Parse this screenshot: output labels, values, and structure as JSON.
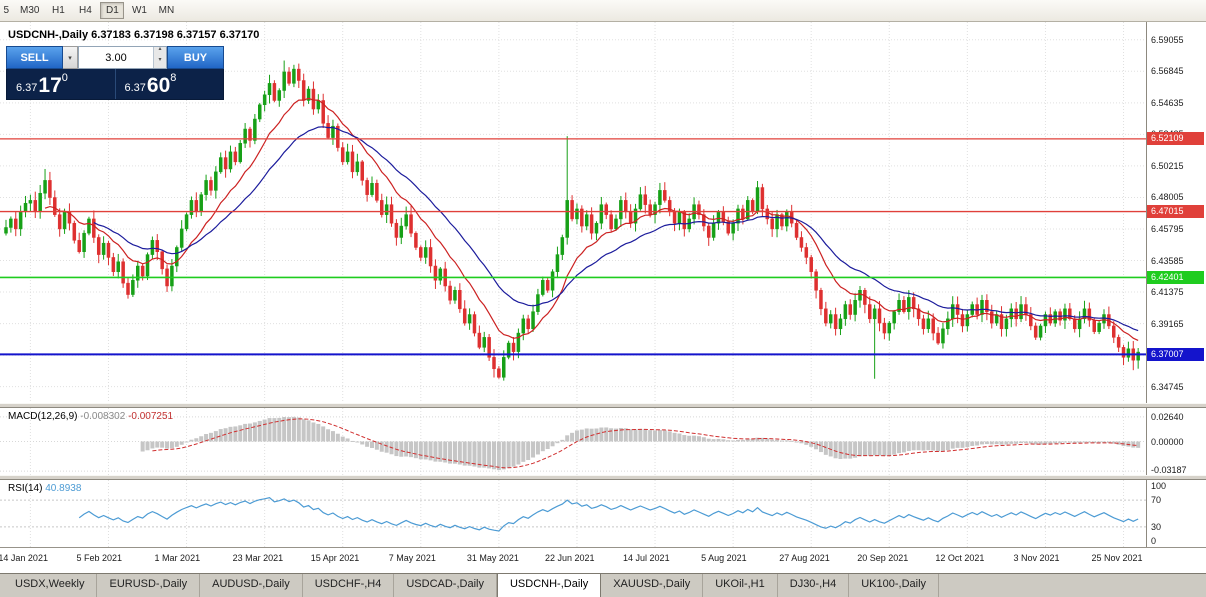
{
  "toolbar": {
    "timeframes": [
      {
        "label": "5",
        "active": false,
        "cut": true
      },
      {
        "label": "M30",
        "active": false
      },
      {
        "label": "H1",
        "active": false
      },
      {
        "label": "H4",
        "active": false
      },
      {
        "label": "D1",
        "active": true
      },
      {
        "label": "W1",
        "active": false
      },
      {
        "label": "MN",
        "active": false
      }
    ]
  },
  "chart": {
    "title": "USDCNH-,Daily",
    "ohlc_text": "6.37183 6.37198 6.37157 6.37170"
  },
  "trade_panel": {
    "sell_label": "SELL",
    "buy_label": "BUY",
    "volume": "3.00",
    "sell_price_main": "6.37",
    "sell_price_big": "17",
    "sell_price_sup": "0",
    "buy_price_main": "6.37",
    "buy_price_big": "60",
    "buy_price_sup": "8"
  },
  "macd": {
    "label": "MACD(12,26,9)",
    "value_main": "-0.008302",
    "value_signal": "-0.007251",
    "axis": [
      "0.02640",
      "0.00000",
      "-0.03187"
    ]
  },
  "rsi": {
    "label": "RSI(14)",
    "value": "40.8938",
    "axis": [
      "100",
      "70",
      "30",
      "0"
    ]
  },
  "tabs": [
    {
      "label": "USDX,Weekly",
      "active": false
    },
    {
      "label": "EURUSD-,Daily",
      "active": false
    },
    {
      "label": "AUDUSD-,Daily",
      "active": false
    },
    {
      "label": "USDCHF-,H4",
      "active": false
    },
    {
      "label": "USDCAD-,Daily",
      "active": false
    },
    {
      "label": "USDCNH-,Daily",
      "active": true
    },
    {
      "label": "XAUUSD-,Daily",
      "active": false
    },
    {
      "label": "UKOil-,H1",
      "active": false
    },
    {
      "label": "DJ30-,H4",
      "active": false
    },
    {
      "label": "UK100-,Daily",
      "active": false
    }
  ],
  "chart_data": {
    "type": "candlestick",
    "symbol": "USDCNH-",
    "timeframe": "Daily",
    "current_bar": {
      "open": 6.37183,
      "high": 6.37198,
      "low": 6.37157,
      "close": 6.3717
    },
    "y_axis": {
      "max": 6.603,
      "min": 6.336,
      "tick_labels": [
        "6.59055",
        "6.56845",
        "6.54635",
        "6.52425",
        "6.50215",
        "6.48005",
        "6.45795",
        "6.43585",
        "6.41375",
        "6.39165",
        "6.36955",
        "6.34745"
      ]
    },
    "x_tick_labels": [
      "14 Jan 2021",
      "5 Feb 2021",
      "1 Mar 2021",
      "23 Mar 2021",
      "15 Apr 2021",
      "7 May 2021",
      "31 May 2021",
      "22 Jun 2021",
      "14 Jul 2021",
      "5 Aug 2021",
      "27 Aug 2021",
      "20 Sep 2021",
      "12 Oct 2021",
      "3 Nov 2021",
      "25 Nov 2021"
    ],
    "x_tick_indices": [
      5,
      21,
      37,
      53,
      69,
      85,
      101,
      117,
      133,
      149,
      165,
      181,
      197,
      213,
      229
    ],
    "closes": [
      6.459,
      6.465,
      6.458,
      6.47,
      6.476,
      6.478,
      6.47,
      6.483,
      6.492,
      6.48,
      6.468,
      6.458,
      6.47,
      6.462,
      6.45,
      6.442,
      6.455,
      6.465,
      6.452,
      6.44,
      6.448,
      6.438,
      6.428,
      6.435,
      6.42,
      6.412,
      6.422,
      6.432,
      6.425,
      6.44,
      6.45,
      6.442,
      6.43,
      6.418,
      6.432,
      6.445,
      6.458,
      6.468,
      6.478,
      6.47,
      6.482,
      6.492,
      6.485,
      6.498,
      6.508,
      6.5,
      6.512,
      6.505,
      6.518,
      6.528,
      6.52,
      6.535,
      6.545,
      6.552,
      6.56,
      6.548,
      6.555,
      6.568,
      6.56,
      6.57,
      6.562,
      6.548,
      6.556,
      6.542,
      6.548,
      6.532,
      6.522,
      6.53,
      6.515,
      6.505,
      6.512,
      6.498,
      6.505,
      6.492,
      6.482,
      6.49,
      6.478,
      6.468,
      6.475,
      6.462,
      6.452,
      6.46,
      6.468,
      6.455,
      6.445,
      6.438,
      6.445,
      6.432,
      6.422,
      6.43,
      6.418,
      6.408,
      6.415,
      6.402,
      6.392,
      6.398,
      6.385,
      6.375,
      6.382,
      6.368,
      6.36,
      6.354,
      6.368,
      6.378,
      6.372,
      6.385,
      6.395,
      6.388,
      6.4,
      6.412,
      6.422,
      6.415,
      6.428,
      6.44,
      6.452,
      6.478,
      6.465,
      6.472,
      6.46,
      6.468,
      6.455,
      6.462,
      6.475,
      6.468,
      6.458,
      6.465,
      6.478,
      6.47,
      6.462,
      6.472,
      6.482,
      6.475,
      6.468,
      6.475,
      6.485,
      6.478,
      6.47,
      6.462,
      6.47,
      6.458,
      6.465,
      6.475,
      6.468,
      6.46,
      6.452,
      6.462,
      6.47,
      6.463,
      6.455,
      6.462,
      6.472,
      6.465,
      6.478,
      6.47,
      6.487,
      6.472,
      6.465,
      6.458,
      6.468,
      6.46,
      6.47,
      6.462,
      6.452,
      6.445,
      6.438,
      6.428,
      6.415,
      6.402,
      6.392,
      6.398,
      6.388,
      6.395,
      6.405,
      6.398,
      6.408,
      6.415,
      6.405,
      6.395,
      6.402,
      6.392,
      6.385,
      6.392,
      6.4,
      6.408,
      6.4,
      6.41,
      6.402,
      6.395,
      6.388,
      6.395,
      6.385,
      6.378,
      6.388,
      6.395,
      6.405,
      6.398,
      6.39,
      6.398,
      6.405,
      6.398,
      6.408,
      6.4,
      6.392,
      6.398,
      6.388,
      6.395,
      6.402,
      6.395,
      6.405,
      6.398,
      6.39,
      6.382,
      6.39,
      6.398,
      6.392,
      6.4,
      6.394,
      6.402,
      6.395,
      6.388,
      6.395,
      6.402,
      6.394,
      6.386,
      6.392,
      6.398,
      6.39,
      6.382,
      6.375,
      6.368,
      6.374,
      6.366,
      6.3717
    ],
    "special_points": {
      "8": {
        "h": 6.5
      },
      "57": {
        "h": 6.576
      },
      "59": {
        "h": 6.573
      },
      "101": {
        "l": 6.353
      },
      "115": {
        "h": 6.523,
        "l": 6.447
      },
      "178": {
        "l": 6.353
      },
      "231": {
        "l": 6.359
      }
    },
    "colors": {
      "up": "#17A017",
      "down": "#DE3030",
      "ma_fast": "#CC2222",
      "ma_slow": "#1C1C9C",
      "grid": "#E0E0E0",
      "macd_hist": "#C6C6C6",
      "macd_signal": "#D03030",
      "rsi_line": "#4C9BD4"
    },
    "overlays": [
      {
        "name": "ma-fast",
        "period": 12,
        "color": "#CC2222"
      },
      {
        "name": "ma-slow",
        "period": 26,
        "color": "#1C1C9C"
      }
    ],
    "h_lines": [
      {
        "price": 6.52109,
        "label": "6.52109",
        "color": "#E0403A",
        "width": 1.3
      },
      {
        "price": 6.47015,
        "label": "6.47015",
        "color": "#E0403A",
        "width": 1.3
      },
      {
        "price": 6.42401,
        "label": "6.42401",
        "color": "#1FCC1F",
        "width": 1.6
      },
      {
        "price": 6.37007,
        "label": "6.37007",
        "color": "#1414CC",
        "width": 2
      }
    ],
    "indicators": [
      {
        "type": "macd",
        "fast": 12,
        "slow": 26,
        "signal": 9,
        "last_main": -0.008302,
        "last_signal": -0.007251,
        "y_range": [
          -0.036,
          0.036
        ],
        "levels": [
          0.0264,
          0,
          -0.03187
        ]
      },
      {
        "type": "rsi",
        "period": 14,
        "last": 40.8938,
        "y_range": [
          0,
          100
        ],
        "levels": [
          70,
          30
        ]
      }
    ]
  }
}
